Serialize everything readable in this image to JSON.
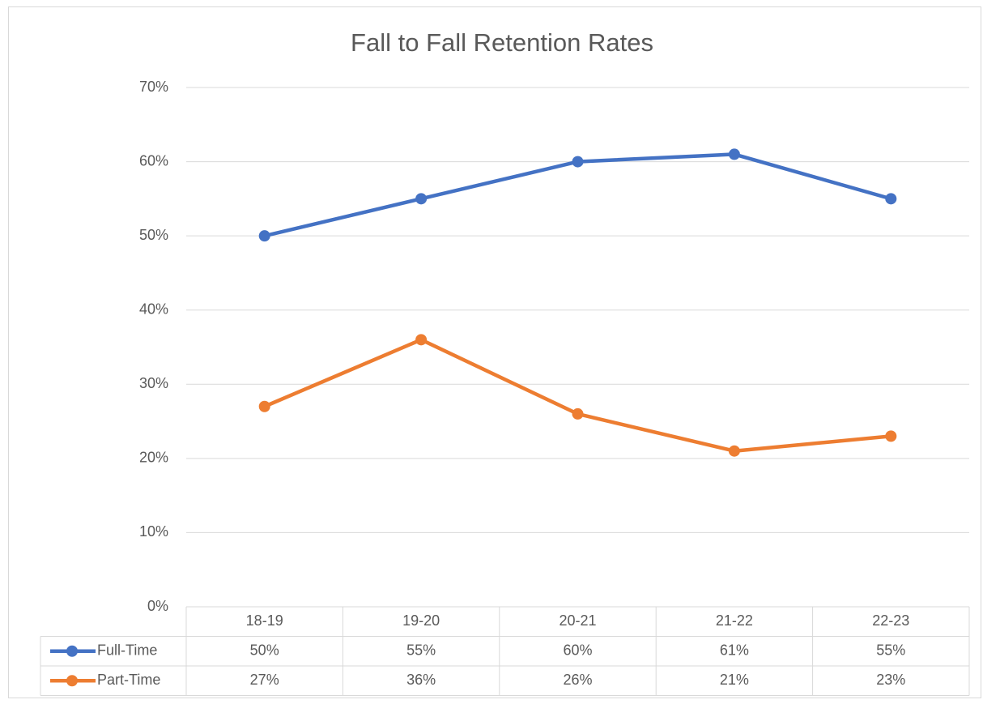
{
  "chart_data": {
    "type": "line",
    "title": "Fall to Fall Retention Rates",
    "categories": [
      "18-19",
      "19-20",
      "20-21",
      "21-22",
      "22-23"
    ],
    "series": [
      {
        "name": "Full-Time",
        "color": "#4472c4",
        "values": [
          50,
          55,
          60,
          61,
          55
        ],
        "value_labels": [
          "50%",
          "55%",
          "60%",
          "61%",
          "55%"
        ]
      },
      {
        "name": "Part-Time",
        "color": "#ed7d31",
        "values": [
          27,
          36,
          26,
          21,
          23
        ],
        "value_labels": [
          "27%",
          "36%",
          "26%",
          "21%",
          "23%"
        ]
      }
    ],
    "ylim": [
      0,
      70
    ],
    "yticks": [
      {
        "value": 0,
        "label": "0%"
      },
      {
        "value": 10,
        "label": "10%"
      },
      {
        "value": 20,
        "label": "20%"
      },
      {
        "value": 30,
        "label": "30%"
      },
      {
        "value": 40,
        "label": "40%"
      },
      {
        "value": 50,
        "label": "50%"
      },
      {
        "value": 60,
        "label": "60%"
      },
      {
        "value": 70,
        "label": "70%"
      }
    ],
    "grid": true
  }
}
